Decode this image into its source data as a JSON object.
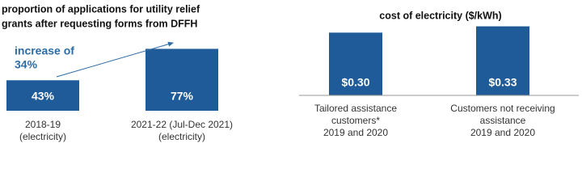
{
  "chart_data": [
    {
      "type": "bar",
      "title": [
        "proportion of applications for utility relief",
        "grants after requesting forms from DFFH"
      ],
      "categories": [
        [
          "2018-19",
          "(electricity)"
        ],
        [
          "2021-22 (Jul-Dec 2021)",
          "(electricity)"
        ]
      ],
      "values": [
        43,
        77
      ],
      "value_labels": [
        "43%",
        "77%"
      ],
      "color": "#1f5b98",
      "ylim": [
        10,
        80
      ],
      "annotation": [
        "increase of",
        "34%"
      ],
      "annotation_color": "#2e6ca5"
    },
    {
      "type": "bar",
      "title": [
        "cost of electricity ($/kWh)"
      ],
      "categories": [
        [
          "Tailored assistance",
          "customers*",
          "2019 and 2020"
        ],
        [
          "Customers not receiving",
          "assistance",
          "2019 and 2020"
        ]
      ],
      "values": [
        0.3,
        0.33
      ],
      "value_labels": [
        "$0.30",
        "$0.33"
      ],
      "color": "#1f5b98",
      "ylim": [
        0,
        0.34
      ]
    }
  ]
}
